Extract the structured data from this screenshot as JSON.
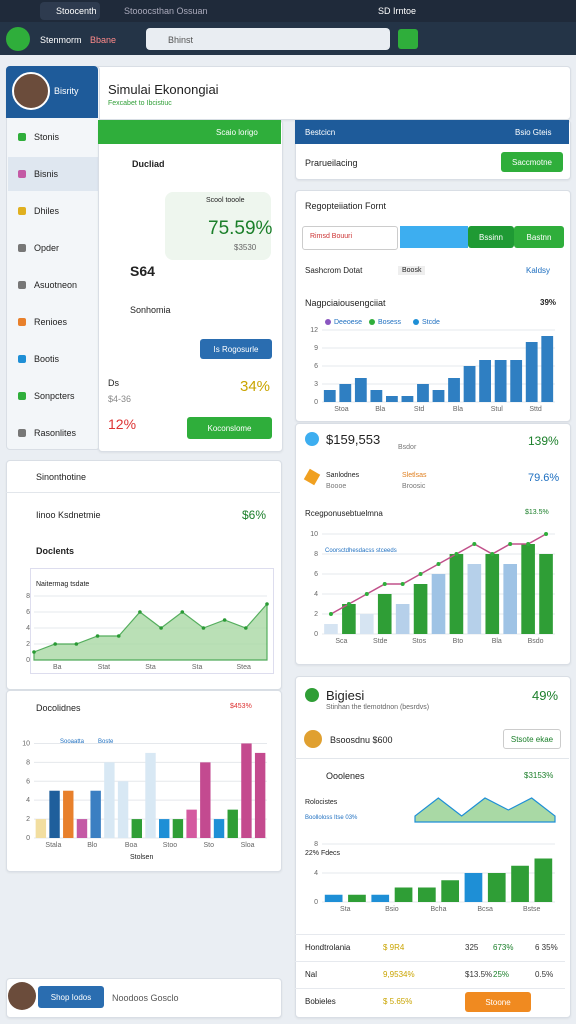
{
  "browser": {
    "tabs": [
      "Stoocenth",
      "Stooocsthan Ossuan",
      "SD Irntoe"
    ]
  },
  "toolbar": {
    "brand": "Stenmorm",
    "brand_accent": "Bbane",
    "search": "Bhinst"
  },
  "sidebar": {
    "user": "Bisrity",
    "items": [
      "Stonis",
      "Bisnis",
      "Dhiles",
      "Opder",
      "Asuotneon",
      "Renioes",
      "Bootis",
      "Sonpcters",
      "Rasonlites"
    ]
  },
  "header": {
    "title": "Simulai Ekonongiai",
    "subtitle": "Fexcabet to Ibcistiuc"
  },
  "summary": {
    "banner": "Scaio lorigo",
    "item1": "Ducliad",
    "stat_label": "Scool tooole",
    "stat_value": "75.59%",
    "stat_sub": "$3530",
    "item2": "S64",
    "item3": "Sonhomia",
    "button1": "Is Rogosurle",
    "code": "Ds",
    "pct1": "34%",
    "amount": "$4-36",
    "pct2": "12%",
    "button2": "Koconslome"
  },
  "panel_top": {
    "title": "Bestcicn",
    "link": "Bsio Gteis",
    "label": "Prarueilacing",
    "button": "Saccmotne"
  },
  "registration": {
    "title": "Regopteiiation Fornt",
    "input": "Rimsd Bouuri",
    "tab1": "Bssinn",
    "tab2": "Bastnn",
    "filter_label": "Sashcrom Dotat",
    "chip": "Boosk",
    "link": "Kaldsy"
  },
  "chart1": {
    "title": "Nagpciaiousengciiat",
    "badge": "39%",
    "legend": [
      "Deeoese",
      "Bosess",
      "Stcde"
    ],
    "values": [
      2,
      3,
      4,
      2,
      1,
      1,
      3,
      2,
      4,
      6,
      7,
      7,
      7,
      10,
      11
    ],
    "ylim": [
      0,
      12
    ],
    "yticks": [
      0,
      3,
      6,
      9,
      12
    ],
    "xlabels": [
      "Stoa",
      "Bla",
      "Std",
      "Bla",
      "Stul",
      "Sttd"
    ]
  },
  "stats1": {
    "amount": "$159,553",
    "label": "Bsdor",
    "pct": "139%",
    "a": "Sanlodnes",
    "b": "Boooe",
    "c": "Sletlsas",
    "d": "Broosic",
    "pct2": "79.6%"
  },
  "chart2": {
    "title": "Rcegponusebtuelmna",
    "badge": "$13.5%",
    "legend": "Coorsctdhesdacss stceeds",
    "values": [
      1,
      3,
      2,
      4,
      3,
      5,
      6,
      8,
      7,
      8,
      7,
      9,
      8
    ],
    "line": [
      2,
      3,
      4,
      5,
      5,
      6,
      7,
      8,
      9,
      8,
      9,
      9,
      10
    ],
    "ylim": [
      0,
      10
    ],
    "yticks": [
      0,
      2,
      4,
      6,
      8,
      10
    ],
    "colors": [
      "#d6e4f2",
      "#2f9e36",
      "#d6e4f2",
      "#2f9e36",
      "#b6d0ea",
      "#2f9e36",
      "#9fc3e5",
      "#2f9e36",
      "#b6d0ea",
      "#2f9e36",
      "#9fc3e5",
      "#2f9e36",
      "#2f9e36"
    ],
    "xlabels": [
      "Sca",
      "Stde",
      "Stos",
      "Bto",
      "Bla",
      "Bsdo"
    ]
  },
  "left_panel": {
    "title": "Sinonthotine",
    "row1": "Iinoo Ksdnetmie",
    "row1_value": "$6%",
    "row2": "Doclents",
    "chart_title": "Naitermag tsdate"
  },
  "chart3": {
    "values": [
      1,
      2,
      2,
      3,
      3,
      6,
      4,
      6,
      4,
      5,
      4,
      7
    ],
    "ylim": [
      0,
      8
    ],
    "yticks": [
      0,
      2,
      4,
      6,
      8
    ],
    "xlabels": [
      "Ba",
      "Stat",
      "Sta",
      "Sta",
      "Stea"
    ]
  },
  "chart4": {
    "title": "Docolidnes",
    "badge": "$453%",
    "legend": [
      "Sooaatta",
      "Boste"
    ],
    "xlabel": "Stolsen",
    "values": [
      2,
      5,
      5,
      2,
      5,
      8,
      6,
      2,
      9,
      2,
      2,
      3,
      8,
      2,
      3,
      10,
      9
    ],
    "colors": [
      "#f2dea0",
      "#1f5f9c",
      "#e8802c",
      "#c45aa5",
      "#3b7fc2",
      "#d8e8f4",
      "#d8e8f4",
      "#2f9e36",
      "#d8e8f4",
      "#1e8fd6",
      "#2f9e36",
      "#d45aa0",
      "#c34a90",
      "#1e8fd6",
      "#2f9e36",
      "#c44a8e",
      "#c44a8e"
    ],
    "ylim": [
      0,
      11
    ],
    "yticks": [
      0,
      2,
      4,
      6,
      8,
      10
    ],
    "xlabels": [
      "Stala",
      "Blo",
      "Boa",
      "Stoo",
      "Sto",
      "Sloa"
    ]
  },
  "side_panel": {
    "title": "Bigiesi",
    "pct": "49%",
    "subtitle": "Stinhan the tlemotdnon (besrdvs)",
    "user": "Bsoosdnu $600",
    "button": "Stsote ekae",
    "section": "Ooolenes",
    "section_value": "$3153%",
    "sub": "Rolocistes",
    "legend": "Boolloloss Itse 03%",
    "chart_label": "22% Fdecs"
  },
  "chart5": {
    "wave": [
      1,
      4,
      1,
      4,
      2,
      4,
      1
    ],
    "values": [
      1,
      1,
      1,
      2,
      2,
      3,
      4,
      4,
      5,
      6
    ],
    "colors": [
      "#1e8fd6",
      "#2f9e36",
      "#1e8fd6",
      "#2f9e36",
      "#2f9e36",
      "#2f9e36",
      "#1e8fd6",
      "#2f9e36",
      "#2f9e36",
      "#2f9e36"
    ],
    "ylim": [
      0,
      8
    ],
    "yticks": [
      0,
      4,
      8
    ],
    "xlabels": [
      "Sta",
      "Bsio",
      "Bcha",
      "Bcsa",
      "Bstse"
    ]
  },
  "table": {
    "rows": [
      [
        "Hondtrolania",
        "$ 9R4",
        "325",
        "673%",
        "6 35%"
      ],
      [
        "Nal",
        "9,9534%",
        "$13.5%",
        "25%",
        "0.5%"
      ],
      [
        "Bobieles",
        "$ 5.65%",
        "Stoone"
      ]
    ]
  },
  "footer": {
    "button": "Shop Iodos",
    "text": "Noodoos Gosclo"
  }
}
